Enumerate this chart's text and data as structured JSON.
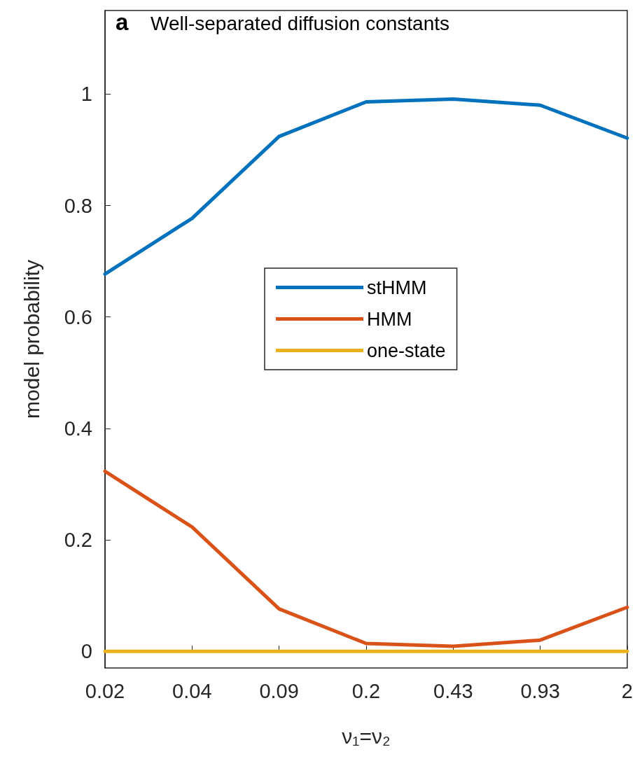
{
  "chart_data": {
    "type": "line",
    "title": "Well-separated diffusion constants",
    "annotations": [
      "a"
    ],
    "xlabel": "ν₁=ν₂",
    "ylabel": "model probability",
    "categories": [
      "0.02",
      "0.04",
      "0.09",
      "0.2",
      "0.43",
      "0.93",
      "2"
    ],
    "series": [
      {
        "name": "stHMM",
        "color": "#0072bd",
        "values": [
          0.677,
          0.777,
          0.924,
          0.986,
          0.991,
          0.98,
          0.921
        ]
      },
      {
        "name": "HMM",
        "color": "#d95319",
        "values": [
          0.323,
          0.223,
          0.076,
          0.014,
          0.009,
          0.02,
          0.079
        ]
      },
      {
        "name": "one-state",
        "color": "#edb120",
        "values": [
          0,
          0,
          0,
          0,
          0,
          0,
          0
        ]
      }
    ],
    "ylim": [
      -0.03,
      1.15
    ],
    "yticks": [
      0,
      0.2,
      0.4,
      0.6,
      0.8,
      1
    ],
    "grid": false,
    "legend": "center",
    "marker": "none",
    "line_style": "solid"
  }
}
